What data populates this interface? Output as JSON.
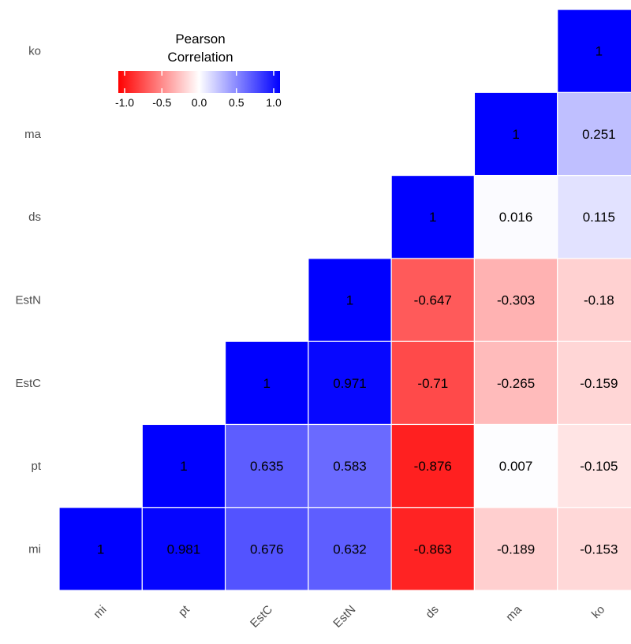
{
  "chart_data": {
    "type": "heatmap",
    "variables": [
      "mi",
      "pt",
      "EstC",
      "EstN",
      "ds",
      "ma",
      "ko"
    ],
    "cells": [
      {
        "row": "mi",
        "col": "mi",
        "value": 1,
        "label": "1"
      },
      {
        "row": "mi",
        "col": "pt",
        "value": 0.981,
        "label": "0.981"
      },
      {
        "row": "mi",
        "col": "EstC",
        "value": 0.676,
        "label": "0.676"
      },
      {
        "row": "mi",
        "col": "EstN",
        "value": 0.632,
        "label": "0.632"
      },
      {
        "row": "mi",
        "col": "ds",
        "value": -0.863,
        "label": "-0.863"
      },
      {
        "row": "mi",
        "col": "ma",
        "value": -0.189,
        "label": "-0.189"
      },
      {
        "row": "mi",
        "col": "ko",
        "value": -0.153,
        "label": "-0.153"
      },
      {
        "row": "pt",
        "col": "pt",
        "value": 1,
        "label": "1"
      },
      {
        "row": "pt",
        "col": "EstC",
        "value": 0.635,
        "label": "0.635"
      },
      {
        "row": "pt",
        "col": "EstN",
        "value": 0.583,
        "label": "0.583"
      },
      {
        "row": "pt",
        "col": "ds",
        "value": -0.876,
        "label": "-0.876"
      },
      {
        "row": "pt",
        "col": "ma",
        "value": 0.007,
        "label": "0.007"
      },
      {
        "row": "pt",
        "col": "ko",
        "value": -0.105,
        "label": "-0.105"
      },
      {
        "row": "EstC",
        "col": "EstC",
        "value": 1,
        "label": "1"
      },
      {
        "row": "EstC",
        "col": "EstN",
        "value": 0.971,
        "label": "0.971"
      },
      {
        "row": "EstC",
        "col": "ds",
        "value": -0.71,
        "label": "-0.71"
      },
      {
        "row": "EstC",
        "col": "ma",
        "value": -0.265,
        "label": "-0.265"
      },
      {
        "row": "EstC",
        "col": "ko",
        "value": -0.159,
        "label": "-0.159"
      },
      {
        "row": "EstN",
        "col": "EstN",
        "value": 1,
        "label": "1"
      },
      {
        "row": "EstN",
        "col": "ds",
        "value": -0.647,
        "label": "-0.647"
      },
      {
        "row": "EstN",
        "col": "ma",
        "value": -0.303,
        "label": "-0.303"
      },
      {
        "row": "EstN",
        "col": "ko",
        "value": -0.18,
        "label": "-0.18"
      },
      {
        "row": "ds",
        "col": "ds",
        "value": 1,
        "label": "1"
      },
      {
        "row": "ds",
        "col": "ma",
        "value": 0.016,
        "label": "0.016"
      },
      {
        "row": "ds",
        "col": "ko",
        "value": 0.115,
        "label": "0.115"
      },
      {
        "row": "ma",
        "col": "ma",
        "value": 1,
        "label": "1"
      },
      {
        "row": "ma",
        "col": "ko",
        "value": 0.251,
        "label": "0.251"
      },
      {
        "row": "ko",
        "col": "ko",
        "value": 1,
        "label": "1"
      }
    ],
    "legend": {
      "title_line1": "Pearson",
      "title_line2": "Correlation",
      "ticks": [
        -1.0,
        -0.5,
        0.0,
        0.5,
        1.0
      ],
      "tick_labels": [
        "-1.0",
        "-0.5",
        "0.0",
        "0.5",
        "1.0"
      ],
      "range": [
        -1,
        1
      ],
      "placement": "top-left"
    },
    "colors": {
      "low": "#FF0000",
      "mid": "#FFFFFF",
      "high": "#0000FF"
    },
    "xlabel": "",
    "ylabel": "",
    "title": ""
  }
}
